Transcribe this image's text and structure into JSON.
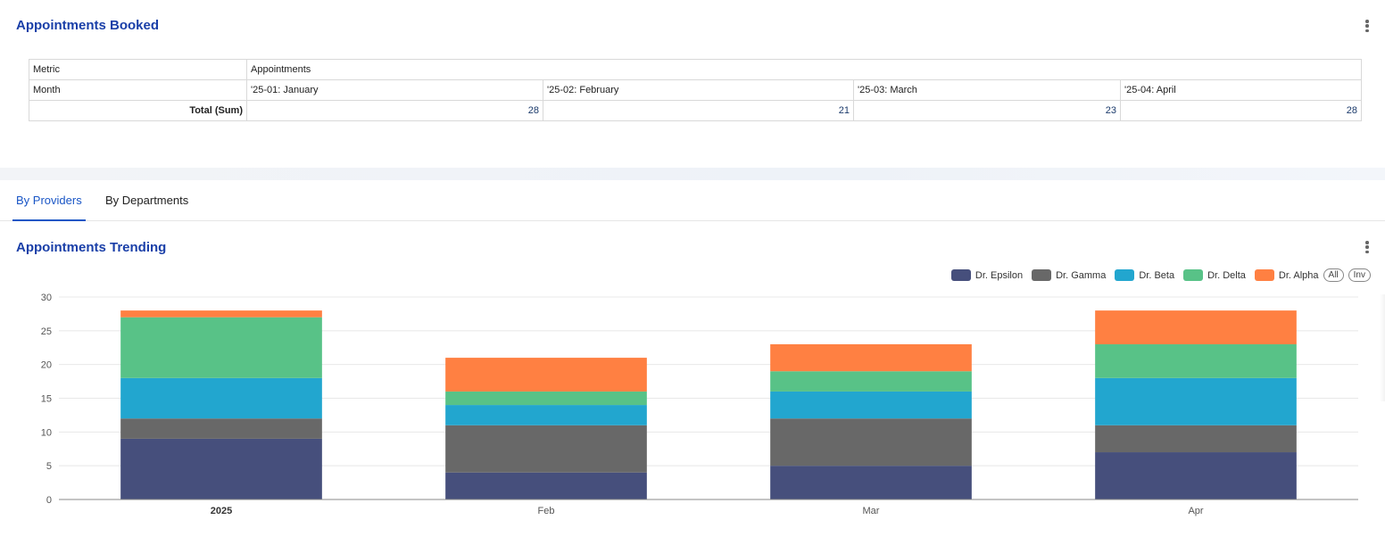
{
  "booked": {
    "title": "Appointments Booked",
    "table": {
      "metric_label": "Metric",
      "metric_value": "Appointments",
      "month_label": "Month",
      "months": [
        "'25-01: January",
        "'25-02: February",
        "'25-03: March",
        "'25-04: April"
      ],
      "total_label": "Total (Sum)",
      "totals": [
        "28",
        "21",
        "23",
        "28"
      ]
    }
  },
  "tabs": [
    {
      "label": "By Providers",
      "active": true
    },
    {
      "label": "By Departments",
      "active": false
    }
  ],
  "trending": {
    "title": "Appointments Trending",
    "legend": {
      "items": [
        {
          "label": "Dr. Epsilon",
          "color": "#464f7c"
        },
        {
          "label": "Dr. Gamma",
          "color": "#686868"
        },
        {
          "label": "Dr. Beta",
          "color": "#22a6cf"
        },
        {
          "label": "Dr. Delta",
          "color": "#58c287"
        },
        {
          "label": "Dr. Alpha",
          "color": "#ff8042"
        }
      ],
      "all_label": "All",
      "inv_label": "Inv"
    }
  },
  "chart_data": {
    "type": "bar",
    "stacked": true,
    "categories": [
      "2025",
      "Feb",
      "Mar",
      "Apr"
    ],
    "ylim": [
      0,
      30
    ],
    "yticks": [
      0,
      5,
      10,
      15,
      20,
      25,
      30
    ],
    "grid": true,
    "legend_position": "top-right",
    "series": [
      {
        "name": "Dr. Epsilon",
        "color": "#464f7c",
        "values": [
          9,
          4,
          5,
          7
        ]
      },
      {
        "name": "Dr. Gamma",
        "color": "#686868",
        "values": [
          3,
          7,
          7,
          4
        ]
      },
      {
        "name": "Dr. Beta",
        "color": "#22a6cf",
        "values": [
          6,
          3,
          4,
          7
        ]
      },
      {
        "name": "Dr. Delta",
        "color": "#58c287",
        "values": [
          9,
          2,
          3,
          5
        ]
      },
      {
        "name": "Dr. Alpha",
        "color": "#ff8042",
        "values": [
          1,
          5,
          4,
          5
        ]
      }
    ]
  }
}
